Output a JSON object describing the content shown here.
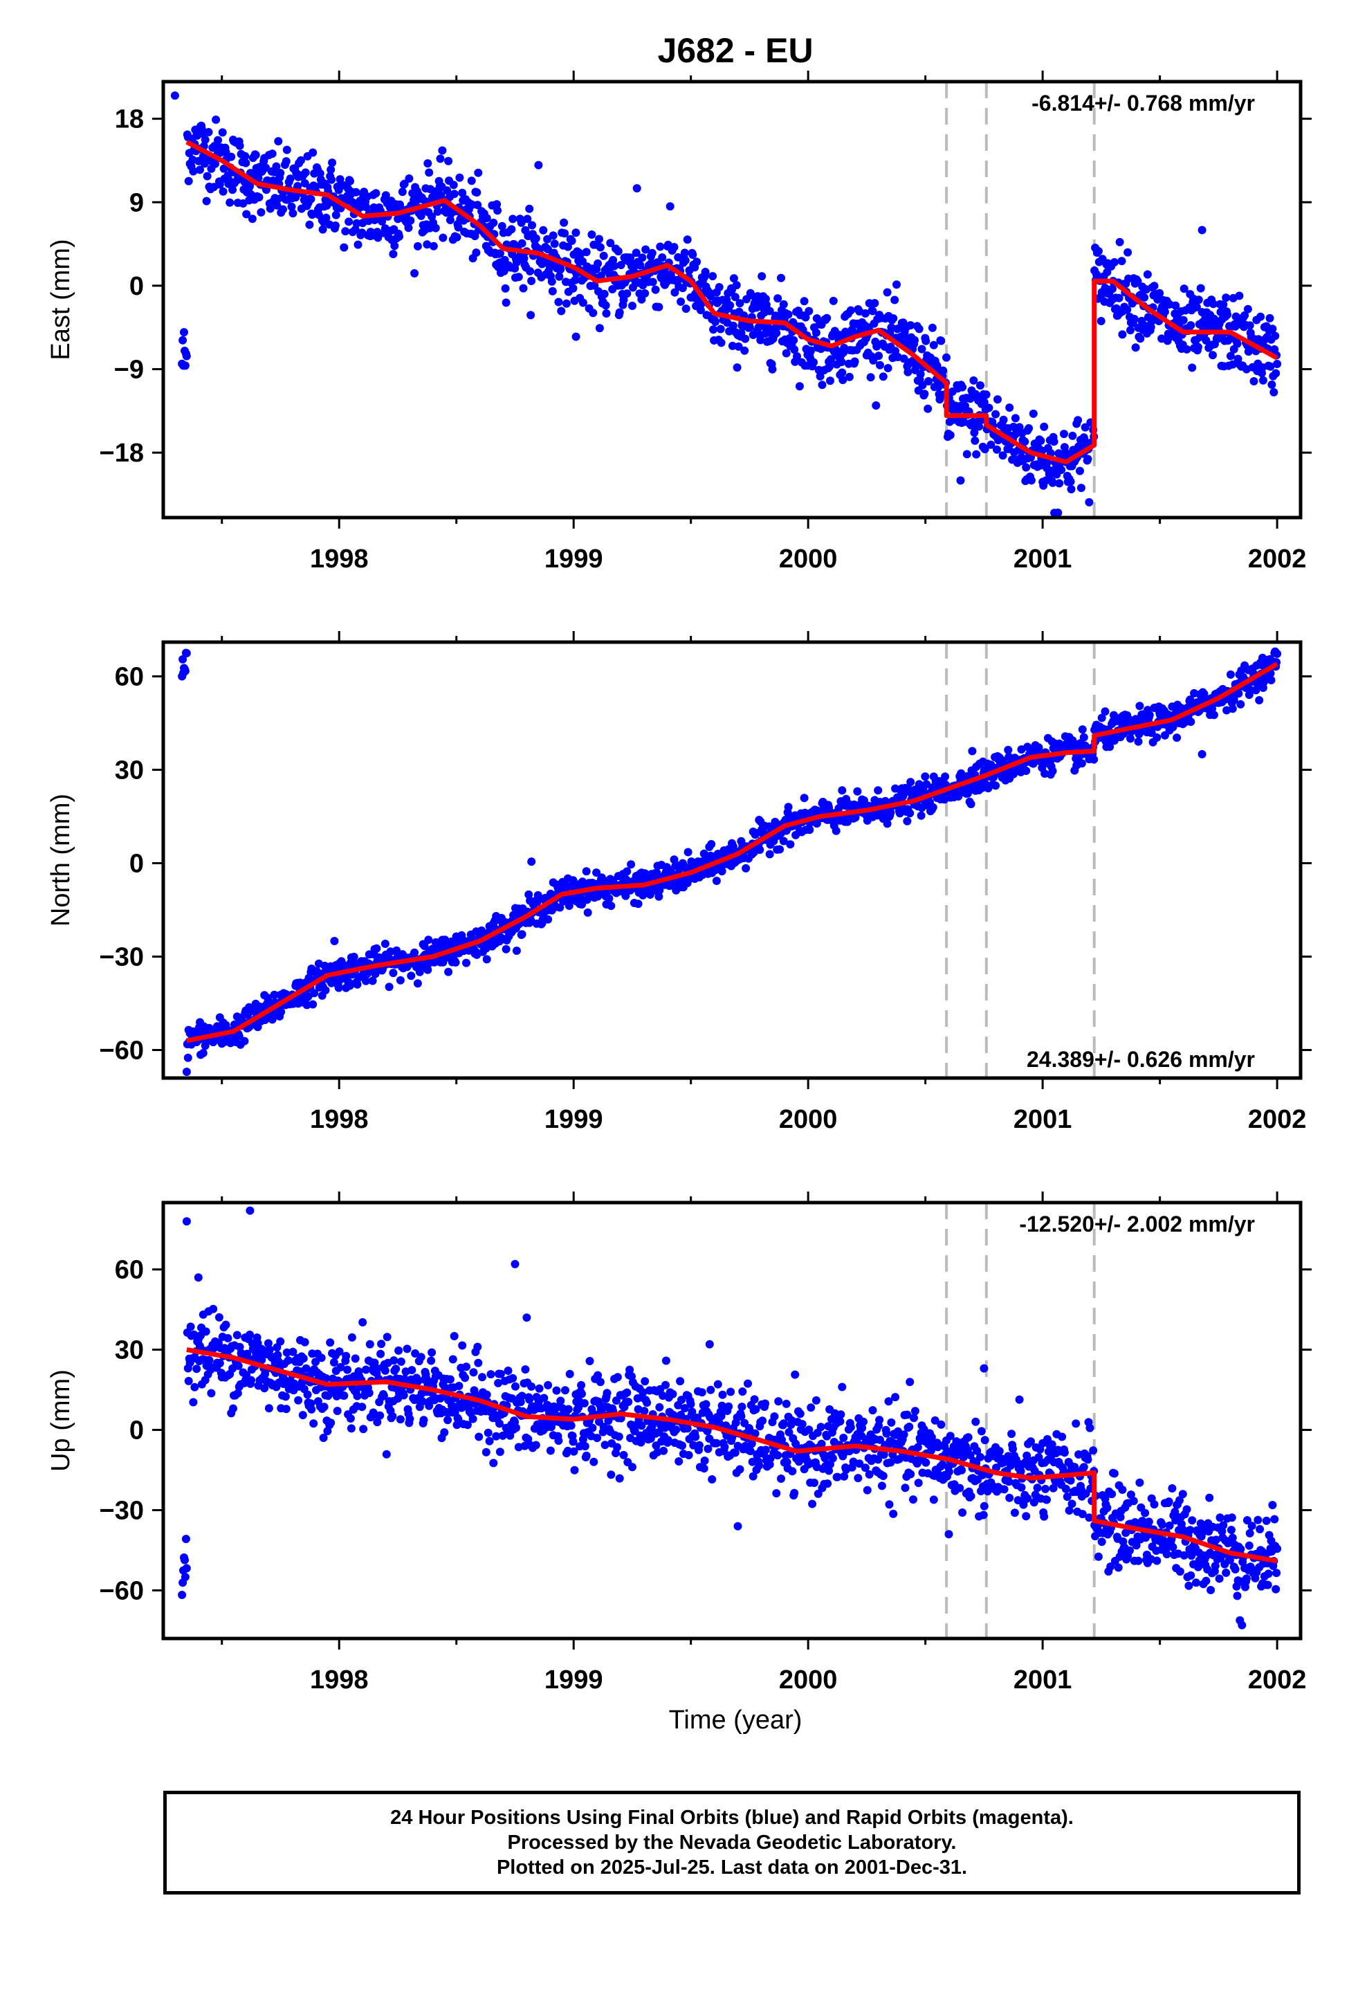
{
  "chart_data": {
    "type": "scatter",
    "title": "J682 - EU",
    "xlabel": "Time (year)",
    "xlim": [
      1997.25,
      2002.1
    ],
    "x_ticks": [
      1998,
      1999,
      2000,
      2001,
      2002
    ],
    "x_tick_labels": [
      "1998",
      "1999",
      "2000",
      "2001",
      "2002"
    ],
    "x_minor_tick_step": 0.5,
    "offset_lines_year": [
      2000.59,
      2000.76,
      2001.22
    ],
    "colors": {
      "points": "#0000ff",
      "model": "#ff0000",
      "offset_lines": "#bbbbbb"
    },
    "panels": [
      {
        "name": "east",
        "ylabel": "East (mm)",
        "ylim": [
          -25,
          22
        ],
        "y_ticks": [
          18,
          9,
          0,
          -9,
          -18
        ],
        "y_tick_labels": [
          "18",
          "9",
          "0",
          "−9",
          "−18"
        ],
        "rate_label": "-6.814+/- 0.768 mm/yr",
        "rate_position": "top-right",
        "noise_mm": 2.0,
        "model": [
          [
            1997.35,
            15.5
          ],
          [
            1997.5,
            13.5
          ],
          [
            1997.65,
            11
          ],
          [
            1997.8,
            10.3
          ],
          [
            1997.95,
            9.8
          ],
          [
            1998.1,
            7.5
          ],
          [
            1998.25,
            7.8
          ],
          [
            1998.45,
            9.2
          ],
          [
            1998.6,
            6.5
          ],
          [
            1998.7,
            4
          ],
          [
            1998.85,
            3.5
          ],
          [
            1999.0,
            2
          ],
          [
            1999.1,
            0.5
          ],
          [
            1999.25,
            1
          ],
          [
            1999.4,
            2.2
          ],
          [
            1999.5,
            0.5
          ],
          [
            1999.6,
            -3
          ],
          [
            1999.75,
            -3.8
          ],
          [
            1999.9,
            -4
          ],
          [
            2000.0,
            -5.8
          ],
          [
            2000.1,
            -6.5
          ],
          [
            2000.2,
            -5.5
          ],
          [
            2000.3,
            -4.8
          ],
          [
            2000.45,
            -7.5
          ],
          [
            2000.59,
            -10.5
          ],
          [
            2000.59,
            -14
          ],
          [
            2000.76,
            -14
          ],
          [
            2000.76,
            -15
          ],
          [
            2000.95,
            -18
          ],
          [
            2001.1,
            -19
          ],
          [
            2001.22,
            -17.2
          ],
          [
            2001.22,
            0.5
          ],
          [
            2001.3,
            0.5
          ],
          [
            2001.45,
            -2.5
          ],
          [
            2001.6,
            -5
          ],
          [
            2001.8,
            -5
          ],
          [
            2002.0,
            -7.8
          ]
        ]
      },
      {
        "name": "north",
        "ylabel": "North (mm)",
        "ylim": [
          -69,
          71
        ],
        "y_ticks": [
          60,
          30,
          0,
          -30,
          -60
        ],
        "y_tick_labels": [
          "60",
          "30",
          "0",
          "−30",
          "−60"
        ],
        "rate_label": "24.389+/- 0.626 mm/yr",
        "rate_position": "bottom-right",
        "noise_mm": 2.5,
        "model": [
          [
            1997.35,
            -57
          ],
          [
            1997.55,
            -54
          ],
          [
            1997.75,
            -45
          ],
          [
            1997.95,
            -36
          ],
          [
            1998.15,
            -33
          ],
          [
            1998.4,
            -30
          ],
          [
            1998.6,
            -25
          ],
          [
            1998.8,
            -17
          ],
          [
            1998.95,
            -10
          ],
          [
            1999.1,
            -8
          ],
          [
            1999.3,
            -7
          ],
          [
            1999.5,
            -3
          ],
          [
            1999.7,
            3
          ],
          [
            1999.9,
            12
          ],
          [
            2000.05,
            15
          ],
          [
            2000.25,
            17
          ],
          [
            2000.45,
            20
          ],
          [
            2000.6,
            24
          ],
          [
            2000.75,
            28
          ],
          [
            2000.95,
            34
          ],
          [
            2001.1,
            35.5
          ],
          [
            2001.22,
            36
          ],
          [
            2001.22,
            41
          ],
          [
            2001.35,
            43
          ],
          [
            2001.55,
            46
          ],
          [
            2001.75,
            53
          ],
          [
            2002.0,
            64
          ]
        ]
      },
      {
        "name": "up",
        "ylabel": "Up (mm)",
        "ylim": [
          -78,
          85
        ],
        "y_ticks": [
          60,
          30,
          0,
          -30,
          -60
        ],
        "y_tick_labels": [
          "60",
          "30",
          "0",
          "−30",
          "−60"
        ],
        "rate_label": "-12.520+/- 2.002 mm/yr",
        "rate_position": "top-right",
        "noise_mm": 8.0,
        "model": [
          [
            1997.35,
            30
          ],
          [
            1997.55,
            27
          ],
          [
            1997.75,
            22
          ],
          [
            1997.95,
            17
          ],
          [
            1998.2,
            18
          ],
          [
            1998.4,
            15
          ],
          [
            1998.6,
            11
          ],
          [
            1998.8,
            5
          ],
          [
            1999.0,
            4
          ],
          [
            1999.2,
            6
          ],
          [
            1999.4,
            4
          ],
          [
            1999.6,
            1
          ],
          [
            1999.8,
            -4
          ],
          [
            1999.95,
            -8
          ],
          [
            2000.2,
            -6
          ],
          [
            2000.4,
            -8
          ],
          [
            2000.6,
            -11
          ],
          [
            2000.8,
            -16
          ],
          [
            2000.95,
            -18
          ],
          [
            2001.1,
            -17
          ],
          [
            2001.22,
            -16
          ],
          [
            2001.22,
            -34
          ],
          [
            2001.4,
            -37
          ],
          [
            2001.6,
            -40
          ],
          [
            2001.8,
            -46
          ],
          [
            2002.0,
            -49
          ]
        ]
      }
    ],
    "outliers": {
      "east": [
        [
          1997.3,
          20.5
        ],
        [
          1998.85,
          13
        ],
        [
          1999.27,
          10.5
        ],
        [
          2001.68,
          6
        ],
        [
          2001.05,
          -24.5
        ],
        [
          2000.65,
          -21
        ],
        [
          1999.01,
          -5.5
        ]
      ],
      "north": [
        [
          1998.82,
          0.5
        ],
        [
          1997.35,
          -67
        ],
        [
          2001.68,
          35
        ],
        [
          2000.7,
          36
        ],
        [
          1997.98,
          -25
        ]
      ],
      "up": [
        [
          1997.35,
          78
        ],
        [
          1997.62,
          82
        ],
        [
          1997.4,
          57
        ],
        [
          1998.75,
          62
        ],
        [
          1998.8,
          42
        ],
        [
          1999.58,
          32
        ],
        [
          2001.85,
          -73
        ],
        [
          1999.7,
          -36
        ],
        [
          2000.75,
          23
        ],
        [
          2000.6,
          -39
        ]
      ]
    }
  },
  "caption": {
    "lines": [
      "24 Hour Positions Using Final Orbits (blue) and Rapid Orbits (magenta).",
      "Processed by the Nevada Geodetic Laboratory.",
      "Plotted on 2025-Jul-25. Last data on 2001-Dec-31."
    ]
  }
}
